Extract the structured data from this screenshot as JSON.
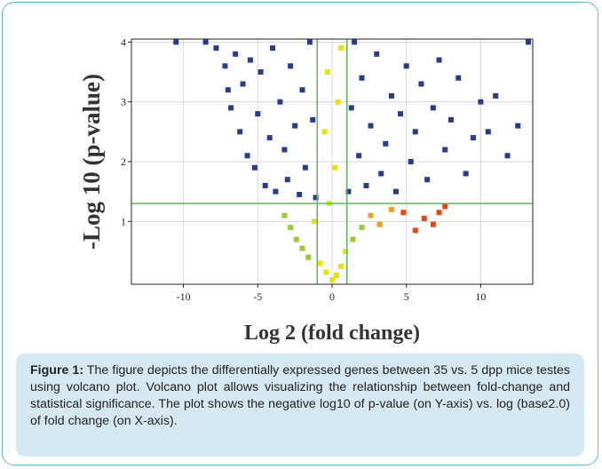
{
  "chart_data": {
    "type": "scatter",
    "title": "",
    "xlabel": "Log 2 (fold change)",
    "ylabel": "-Log 10  (p-value)",
    "xlim": [
      -13.5,
      13.5
    ],
    "ylim": [
      -0.05,
      4.05
    ],
    "x_ticks": [
      -10,
      -5,
      0,
      5,
      10
    ],
    "y_ticks": [
      1,
      2,
      3,
      4
    ],
    "x_tick_labels": [
      "-10",
      "-5",
      "0",
      "5",
      "10"
    ],
    "y_tick_labels": [
      "1",
      "2",
      "3",
      "4"
    ],
    "grid": true,
    "thresholds": {
      "log2_fold_change": [
        -1,
        1
      ],
      "neg_log10_p": 1.3
    },
    "colors": {
      "significant": "#2b3a8c",
      "low_fold_change": "#e6e20e",
      "mid_fold_change": "#9acd32",
      "high_fold_change_positive": "#e8461a",
      "threshold_lines": "#5cb85c"
    },
    "series": [
      {
        "points": [
          [
            -10.5,
            4.0
          ],
          [
            -8.5,
            4.0
          ],
          [
            -7.8,
            3.9
          ],
          [
            -7.2,
            3.6
          ],
          [
            -7.0,
            3.2
          ],
          [
            -6.8,
            2.9
          ],
          [
            -6.5,
            3.8
          ],
          [
            -6.2,
            2.5
          ],
          [
            -6.0,
            3.3
          ],
          [
            -5.7,
            2.1
          ],
          [
            -5.5,
            3.7
          ],
          [
            -5.2,
            1.9
          ],
          [
            -5.0,
            2.8
          ],
          [
            -4.8,
            3.5
          ],
          [
            -4.5,
            1.6
          ],
          [
            -4.2,
            2.4
          ],
          [
            -4.0,
            3.9
          ],
          [
            -3.8,
            1.5
          ],
          [
            -3.5,
            3.0
          ],
          [
            -3.2,
            2.2
          ],
          [
            -3.0,
            1.7
          ],
          [
            -2.8,
            3.6
          ],
          [
            -2.5,
            2.6
          ],
          [
            -2.2,
            1.45
          ],
          [
            -2.0,
            3.2
          ],
          [
            -1.8,
            1.9
          ],
          [
            -1.5,
            4.0
          ],
          [
            -1.3,
            2.7
          ],
          [
            -1.1,
            1.4
          ],
          [
            1.1,
            1.5
          ],
          [
            1.3,
            2.9
          ],
          [
            1.5,
            4.0
          ],
          [
            1.8,
            2.1
          ],
          [
            2.0,
            3.4
          ],
          [
            2.3,
            1.6
          ],
          [
            2.6,
            2.6
          ],
          [
            3.0,
            3.8
          ],
          [
            3.3,
            1.8
          ],
          [
            3.6,
            2.3
          ],
          [
            4.0,
            3.1
          ],
          [
            4.3,
            1.5
          ],
          [
            4.6,
            2.8
          ],
          [
            5.0,
            3.6
          ],
          [
            5.3,
            2.0
          ],
          [
            5.6,
            2.5
          ],
          [
            6.0,
            3.3
          ],
          [
            6.4,
            1.7
          ],
          [
            6.8,
            2.9
          ],
          [
            7.2,
            3.7
          ],
          [
            7.6,
            2.2
          ],
          [
            8.0,
            2.7
          ],
          [
            8.5,
            3.4
          ],
          [
            9.0,
            1.8
          ],
          [
            9.5,
            2.4
          ],
          [
            10.0,
            3.0
          ],
          [
            10.5,
            2.5
          ],
          [
            11.0,
            3.1
          ],
          [
            11.8,
            2.1
          ],
          [
            12.5,
            2.6
          ],
          [
            13.2,
            4.0
          ],
          [
            -3.2,
            1.1
          ],
          [
            -2.8,
            0.9
          ],
          [
            -2.4,
            0.7
          ],
          [
            -2.0,
            0.55
          ],
          [
            -1.6,
            0.4
          ],
          [
            -1.2,
            1.0
          ],
          [
            -0.8,
            0.3
          ],
          [
            -0.4,
            0.15
          ],
          [
            0.0,
            0.02
          ],
          [
            0.3,
            0.1
          ],
          [
            0.6,
            0.25
          ],
          [
            0.9,
            0.5
          ],
          [
            -0.5,
            2.5
          ],
          [
            -0.3,
            3.5
          ],
          [
            0.2,
            1.9
          ],
          [
            0.4,
            3.0
          ],
          [
            0.6,
            3.9
          ],
          [
            -0.2,
            1.3
          ],
          [
            1.4,
            0.7
          ],
          [
            2.0,
            0.9
          ],
          [
            2.6,
            1.1
          ],
          [
            3.2,
            0.95
          ],
          [
            4.0,
            1.2
          ],
          [
            4.8,
            1.15
          ],
          [
            5.6,
            0.85
          ],
          [
            6.2,
            1.05
          ],
          [
            6.8,
            0.95
          ],
          [
            7.2,
            1.15
          ],
          [
            7.6,
            1.25
          ]
        ]
      }
    ]
  },
  "caption": {
    "label": "Figure 1:",
    "text": " The figure depicts the differentially expressed genes between 35 vs. 5 dpp mice testes using volcano plot. Volcano plot allows visualizing the relationship between fold-change and statistical significance. The plot shows the negative log10 of p-value (on Y-axis) vs. log (base2.0) of fold change (on X-axis)."
  }
}
